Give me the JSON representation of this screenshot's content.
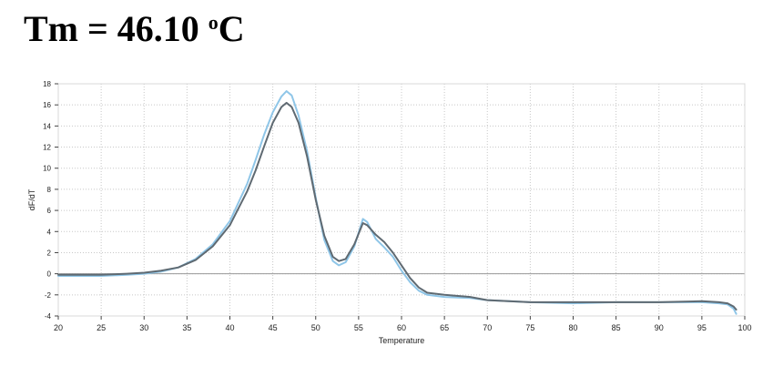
{
  "title": {
    "prefix": "Tm = 46.10 ",
    "degree": "o",
    "unit": "C"
  },
  "chart_data": {
    "type": "line",
    "xlabel": "Temperature",
    "ylabel": "dF/dT",
    "xlim": [
      20,
      100
    ],
    "ylim": [
      -4,
      18
    ],
    "xticks": [
      20,
      25,
      30,
      35,
      40,
      45,
      50,
      55,
      60,
      65,
      70,
      75,
      80,
      85,
      90,
      95,
      100
    ],
    "yticks": [
      -4,
      -2,
      0,
      2,
      4,
      6,
      8,
      10,
      12,
      14,
      16,
      18
    ],
    "grid": true,
    "zero_line": true,
    "series": [
      {
        "color": "#8fc6e8",
        "points": [
          [
            20,
            -0.2
          ],
          [
            25,
            -0.2
          ],
          [
            28,
            -0.1
          ],
          [
            30,
            0.0
          ],
          [
            32,
            0.2
          ],
          [
            34,
            0.6
          ],
          [
            36,
            1.4
          ],
          [
            38,
            2.8
          ],
          [
            40,
            5.0
          ],
          [
            42,
            8.5
          ],
          [
            43,
            10.8
          ],
          [
            44,
            13.2
          ],
          [
            45,
            15.3
          ],
          [
            46,
            16.8
          ],
          [
            46.6,
            17.3
          ],
          [
            47.2,
            16.9
          ],
          [
            48,
            15.0
          ],
          [
            49,
            11.6
          ],
          [
            50,
            7.2
          ],
          [
            51,
            3.2
          ],
          [
            52,
            1.2
          ],
          [
            52.7,
            0.8
          ],
          [
            53.5,
            1.1
          ],
          [
            54.5,
            2.6
          ],
          [
            55.5,
            5.2
          ],
          [
            56,
            4.9
          ],
          [
            57,
            3.3
          ],
          [
            58,
            2.5
          ],
          [
            59,
            1.6
          ],
          [
            60,
            0.3
          ],
          [
            61,
            -0.8
          ],
          [
            62,
            -1.6
          ],
          [
            63,
            -2.0
          ],
          [
            65,
            -2.2
          ],
          [
            68,
            -2.3
          ],
          [
            70,
            -2.5
          ],
          [
            75,
            -2.7
          ],
          [
            80,
            -2.8
          ],
          [
            85,
            -2.7
          ],
          [
            90,
            -2.7
          ],
          [
            95,
            -2.7
          ],
          [
            97,
            -2.8
          ],
          [
            98,
            -2.9
          ],
          [
            98.7,
            -3.3
          ],
          [
            99,
            -3.8
          ]
        ]
      },
      {
        "color": "#5f6a72",
        "points": [
          [
            20,
            -0.1
          ],
          [
            25,
            -0.1
          ],
          [
            28,
            0.0
          ],
          [
            30,
            0.1
          ],
          [
            32,
            0.3
          ],
          [
            34,
            0.6
          ],
          [
            36,
            1.3
          ],
          [
            38,
            2.6
          ],
          [
            40,
            4.6
          ],
          [
            42,
            7.8
          ],
          [
            43,
            9.8
          ],
          [
            44,
            12.1
          ],
          [
            45,
            14.3
          ],
          [
            46,
            15.8
          ],
          [
            46.6,
            16.2
          ],
          [
            47.2,
            15.8
          ],
          [
            48,
            14.3
          ],
          [
            49,
            11.1
          ],
          [
            50,
            7.0
          ],
          [
            51,
            3.6
          ],
          [
            52,
            1.6
          ],
          [
            52.7,
            1.2
          ],
          [
            53.5,
            1.4
          ],
          [
            54.5,
            2.8
          ],
          [
            55.5,
            4.8
          ],
          [
            56,
            4.6
          ],
          [
            57,
            3.7
          ],
          [
            58,
            3.0
          ],
          [
            59,
            2.0
          ],
          [
            60,
            0.8
          ],
          [
            61,
            -0.4
          ],
          [
            62,
            -1.3
          ],
          [
            63,
            -1.8
          ],
          [
            65,
            -2.0
          ],
          [
            68,
            -2.2
          ],
          [
            70,
            -2.5
          ],
          [
            75,
            -2.7
          ],
          [
            80,
            -2.7
          ],
          [
            85,
            -2.7
          ],
          [
            90,
            -2.7
          ],
          [
            95,
            -2.6
          ],
          [
            97,
            -2.7
          ],
          [
            98,
            -2.8
          ],
          [
            98.7,
            -3.1
          ],
          [
            99,
            -3.4
          ]
        ]
      }
    ]
  }
}
